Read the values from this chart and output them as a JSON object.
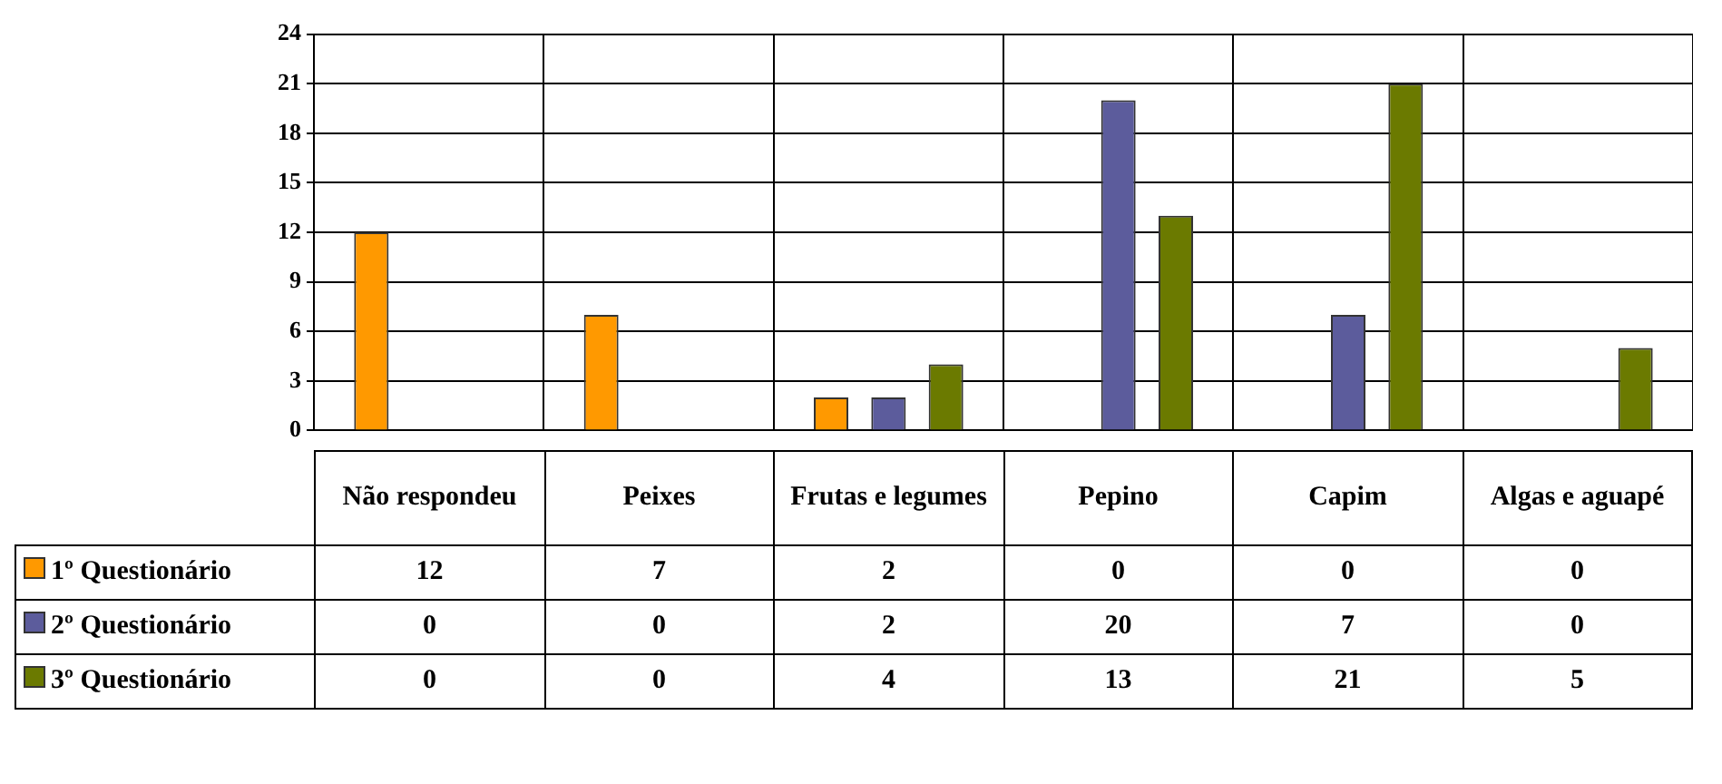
{
  "chart_data": {
    "type": "bar",
    "categories": [
      "Não respondeu",
      "Peixes",
      "Frutas e legumes",
      "Pepino",
      "Capim",
      "Algas e aguapé"
    ],
    "series": [
      {
        "name": "1º Questionário",
        "color": "#ff9900",
        "values": [
          12,
          7,
          2,
          0,
          0,
          0
        ]
      },
      {
        "name": "2º Questionário",
        "color": "#5c5c9c",
        "values": [
          0,
          0,
          2,
          20,
          7,
          0
        ]
      },
      {
        "name": "3º Questionário",
        "color": "#6b7a00",
        "values": [
          0,
          0,
          4,
          13,
          21,
          5
        ]
      }
    ],
    "ylim": [
      0,
      24
    ],
    "yticks": [
      0,
      3,
      6,
      9,
      12,
      15,
      18,
      21,
      24
    ],
    "grid": true,
    "legend": "left",
    "data_labels": true
  }
}
